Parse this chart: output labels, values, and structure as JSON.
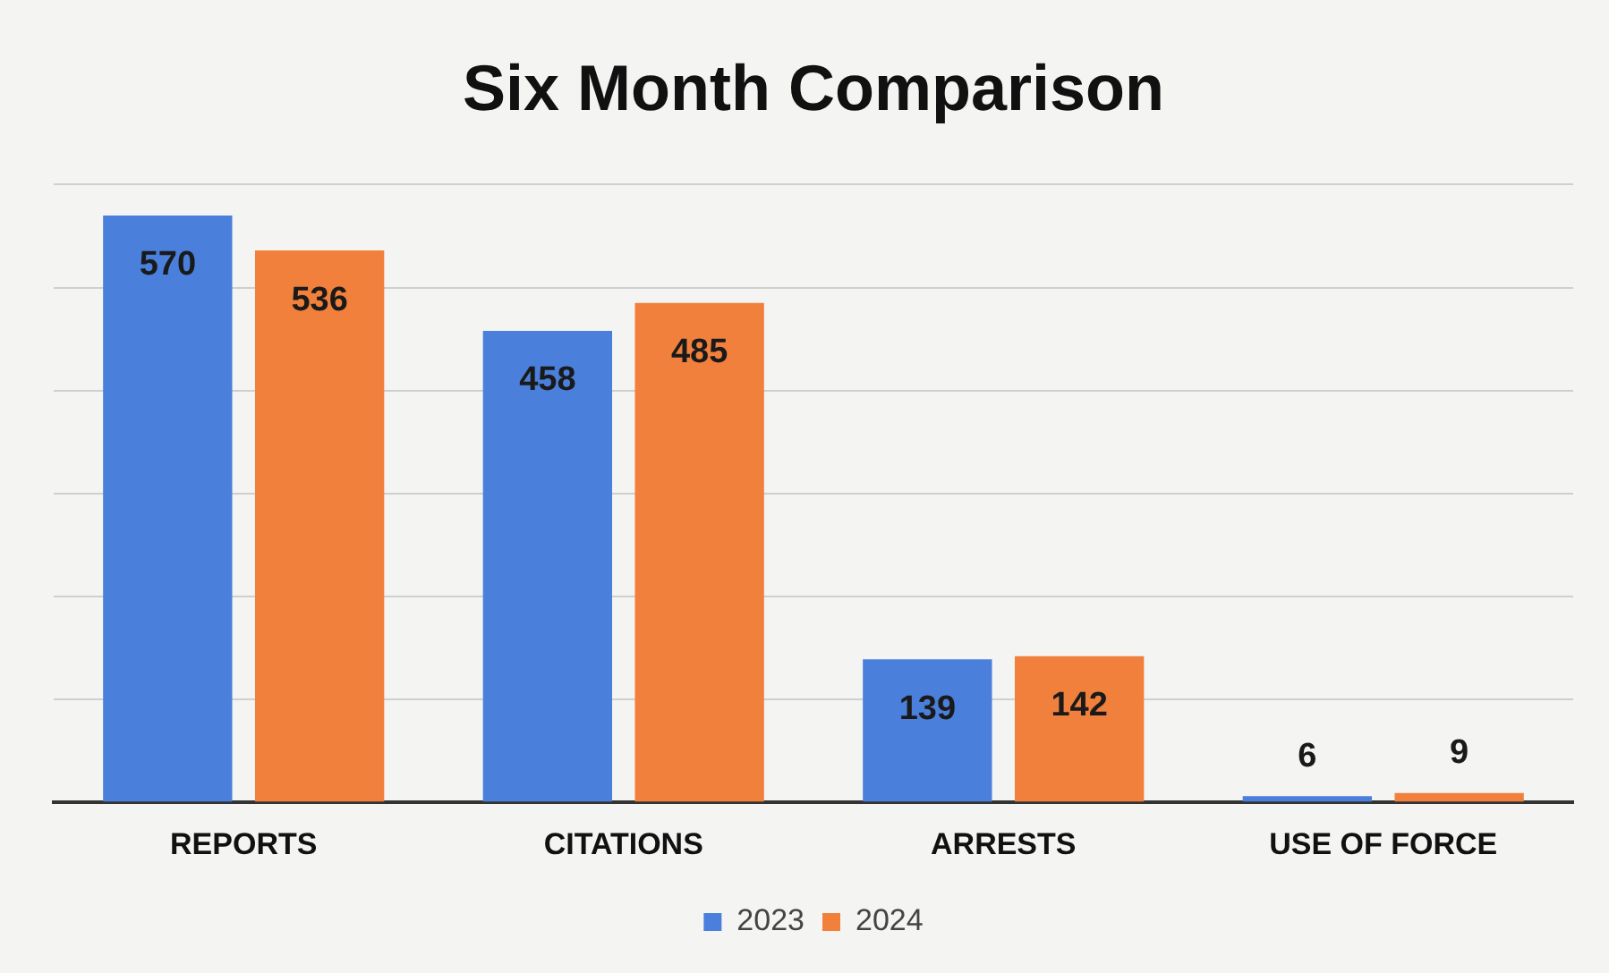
{
  "chart_data": {
    "type": "bar",
    "title": "Six Month Comparison",
    "categories": [
      "REPORTS",
      "CITATIONS",
      "ARRESTS",
      "USE OF FORCE"
    ],
    "series": [
      {
        "name": "2023",
        "color": "#4a7fdc",
        "values": [
          570,
          458,
          139,
          6
        ]
      },
      {
        "name": "2024",
        "color": "#f0803c",
        "values": [
          536,
          485,
          142,
          9
        ]
      }
    ],
    "ylim": [
      0,
      600
    ],
    "yticks": [
      {
        "value": 0,
        "label": null
      },
      {
        "value": 100,
        "label": null
      },
      {
        "value": 200,
        "label": null
      },
      {
        "value": 300,
        "label": null
      },
      {
        "value": 400,
        "label": null
      },
      {
        "value": 500,
        "label": null
      },
      {
        "value": 600,
        "label": null
      }
    ],
    "tick_labels": "x",
    "grid": "y",
    "legend": "bottom",
    "data_labels": true
  }
}
